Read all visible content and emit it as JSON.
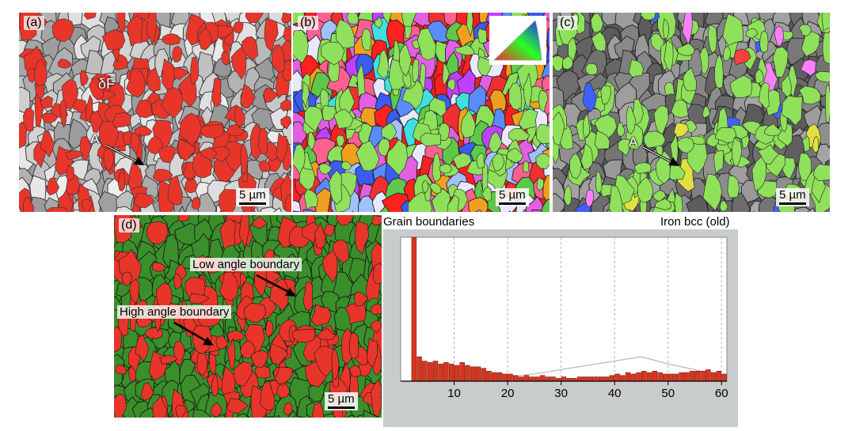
{
  "panels": {
    "a": {
      "label": "(a)",
      "scale_label": "5 µm",
      "annotation_df": "δF",
      "annotation_a": "A"
    },
    "b": {
      "label": "(b)",
      "scale_label": "5 µm"
    },
    "c": {
      "label": "(c)",
      "scale_label": "5 µm",
      "annotation_a": "A"
    },
    "d": {
      "label": "(d)",
      "scale_label": "5 µm",
      "annotation_low": "Low angle boundary",
      "annotation_high": "High angle boundary"
    }
  },
  "colors": {
    "austenite_red": "#e8352a",
    "ferrite_green": "#3a8f2b",
    "grain_grey": "#a8a8a8",
    "lime": "#8fe05a"
  },
  "chart_data": {
    "type": "bar",
    "title_left": "Grain boundaries",
    "title_right": "Iron bcc (old)",
    "xlabel": "",
    "ylabel": "",
    "xlim": [
      0,
      61
    ],
    "ylim": [
      0,
      1
    ],
    "xticks": [
      10,
      20,
      30,
      40,
      50,
      60
    ],
    "bin_width": 1,
    "bins_start": [
      2,
      3,
      4,
      5,
      6,
      7,
      8,
      9,
      10,
      11,
      12,
      13,
      14,
      15,
      16,
      17,
      18,
      19,
      20,
      21,
      22,
      23,
      24,
      25,
      26,
      27,
      28,
      29,
      30,
      31,
      32,
      33,
      34,
      35,
      36,
      37,
      38,
      39,
      40,
      41,
      42,
      43,
      44,
      45,
      46,
      47,
      48,
      49,
      50,
      51,
      52,
      53,
      54,
      55,
      56,
      57,
      58,
      59,
      60
    ],
    "values": [
      1.0,
      0.17,
      0.14,
      0.13,
      0.14,
      0.12,
      0.13,
      0.12,
      0.11,
      0.13,
      0.11,
      0.1,
      0.1,
      0.09,
      0.07,
      0.06,
      0.06,
      0.05,
      0.05,
      0.04,
      0.03,
      0.04,
      0.03,
      0.03,
      0.04,
      0.03,
      0.03,
      0.02,
      0.03,
      0.02,
      0.02,
      0.03,
      0.03,
      0.03,
      0.03,
      0.03,
      0.03,
      0.04,
      0.05,
      0.04,
      0.06,
      0.05,
      0.06,
      0.07,
      0.06,
      0.07,
      0.06,
      0.05,
      0.05,
      0.05,
      0.06,
      0.06,
      0.07,
      0.07,
      0.07,
      0.08,
      0.06,
      0.07,
      0.05
    ],
    "theoretical_curve": {
      "x": [
        0,
        5,
        10,
        15,
        20,
        25,
        30,
        35,
        40,
        45,
        50,
        55,
        60
      ],
      "y": [
        0,
        0.0,
        0.01,
        0.02,
        0.03,
        0.05,
        0.08,
        0.11,
        0.14,
        0.17,
        0.12,
        0.08,
        0.03
      ]
    },
    "bar_color": "#d8341f",
    "grid": "vertical-dashed"
  }
}
